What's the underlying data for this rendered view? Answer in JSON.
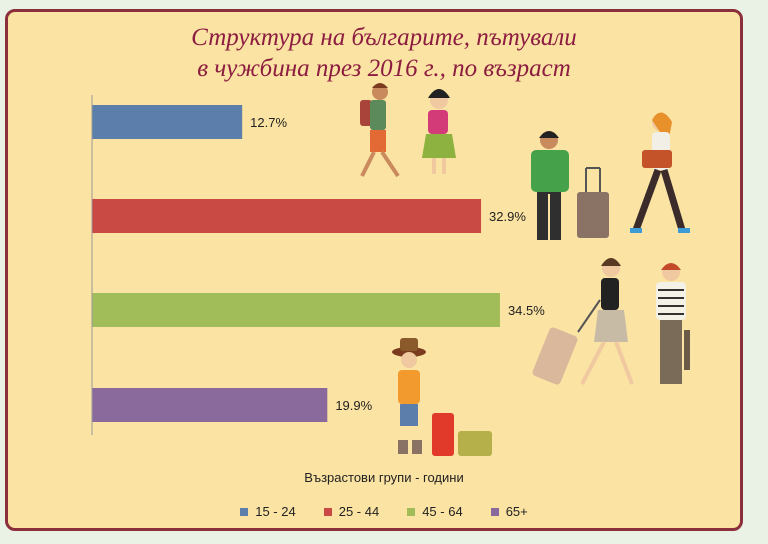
{
  "title_line1": "Структура на българите, пътували",
  "title_line2": "в чужбина през 2016 г., по възраст",
  "chart_data": {
    "type": "bar",
    "orientation": "horizontal",
    "categories": [
      "15 - 24",
      "25 - 44",
      "45 - 64",
      "65+"
    ],
    "values": [
      12.7,
      32.9,
      34.5,
      19.9
    ],
    "value_labels": [
      "12.7%",
      "32.9%",
      "34.5%",
      "19.9%"
    ],
    "colors": [
      "#5b7faa",
      "#c94a45",
      "#a1bd5a",
      "#8a6a9c"
    ],
    "xlabel": "Възрастови групи - години",
    "ylabel": "",
    "xlim": [
      0,
      40
    ],
    "grid": false,
    "legend_position": "bottom"
  },
  "illustrations": [
    "hiker-couple-icon",
    "traveler-with-suitcase-icon",
    "woman-with-handbag-icon",
    "woman-pulling-suitcase-icon",
    "man-on-phone-icon",
    "elderly-tourist-icon"
  ]
}
